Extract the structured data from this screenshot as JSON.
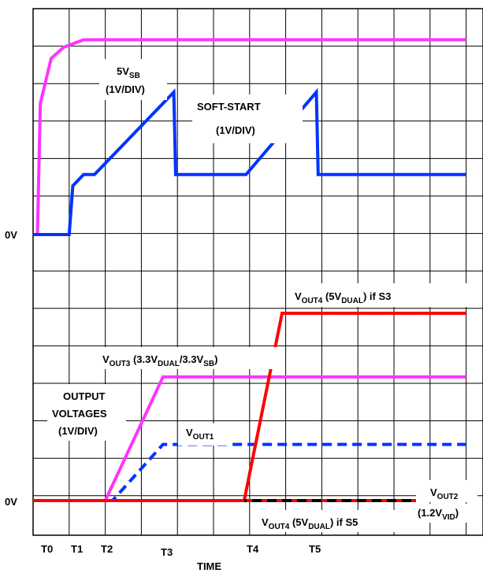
{
  "chart_data": {
    "type": "line",
    "title": "",
    "xlabel": "TIME",
    "ylabel": "",
    "x_ticks": [
      "T0",
      "T1",
      "T2",
      "T3",
      "T4",
      "T5"
    ],
    "y_zero_labels": [
      "0V",
      "0V"
    ],
    "panels": [
      {
        "name": "upper",
        "scale_label": "1V/DIV",
        "grid": true,
        "series": [
          {
            "name": "5VSB",
            "color": "#ff33ff",
            "style": "solid",
            "points": [
              [
                0.0,
                0.0
              ],
              [
                0.12,
                0.0
              ],
              [
                0.2,
                3.5
              ],
              [
                0.5,
                4.7
              ],
              [
                0.85,
                5.0
              ],
              [
                1.4,
                5.2
              ],
              [
                12.0,
                5.2
              ]
            ]
          },
          {
            "name": "SOFT-START",
            "color": "#0033ff",
            "style": "solid",
            "points": [
              [
                0.0,
                0.0
              ],
              [
                1.0,
                0.0
              ],
              [
                1.1,
                1.3
              ],
              [
                1.4,
                1.6
              ],
              [
                1.7,
                1.6
              ],
              [
                3.9,
                3.8
              ],
              [
                3.95,
                1.6
              ],
              [
                5.9,
                1.6
              ],
              [
                7.85,
                3.8
              ],
              [
                7.9,
                1.6
              ],
              [
                12.0,
                1.6
              ]
            ]
          }
        ]
      },
      {
        "name": "lower",
        "scale_label": "1V/DIV",
        "grid": true,
        "series": [
          {
            "name": "VOUT3 (3.3VDUAL/3.3VSB)",
            "color": "#ff33ff",
            "style": "solid",
            "points": [
              [
                0.0,
                0.0
              ],
              [
                2.0,
                0.0
              ],
              [
                3.6,
                3.3
              ],
              [
                12.0,
                3.3
              ]
            ]
          },
          {
            "name": "VOUT1",
            "color": "#0033ff",
            "style": "dashed",
            "points": [
              [
                0.0,
                0.0
              ],
              [
                2.2,
                0.0
              ],
              [
                3.6,
                1.5
              ],
              [
                12.0,
                1.5
              ]
            ]
          },
          {
            "name": "VOUT4 (5VDUAL) if S3",
            "color": "#ff0000",
            "style": "solid",
            "points": [
              [
                0.0,
                0.0
              ],
              [
                5.85,
                0.0
              ],
              [
                6.9,
                5.0
              ],
              [
                12.0,
                5.0
              ]
            ]
          },
          {
            "name": "VOUT4 (5VDUAL) if S5",
            "color": "#ff0000",
            "style": "dashed",
            "points": [
              [
                5.85,
                0.0
              ],
              [
                12.0,
                0.0
              ]
            ]
          },
          {
            "name": "VOUT2 (1.2VVID)",
            "color": "#000000",
            "style": "dashed",
            "points": [
              [
                5.85,
                0.0
              ],
              [
                12.0,
                0.0
              ]
            ]
          }
        ]
      }
    ]
  },
  "labels": {
    "zero_upper": "0V",
    "zero_lower": "0V",
    "x_title": "TIME",
    "t0": "T0",
    "t1": "T1",
    "t2": "T2",
    "t3": "T3",
    "t4": "T4",
    "t5": "T5",
    "sb_main": "5V",
    "sb_sub": "SB",
    "sb_scale": "(1V/DIV)",
    "ss_title": "SOFT-START",
    "ss_scale": "(1V/DIV)",
    "ov_line1": "OUTPUT",
    "ov_line2": "VOLTAGES",
    "ov_line3": "(1V/DIV)",
    "vout1_main": "V",
    "vout1_sub": "OUT1",
    "vout3_v": "V",
    "vout3_sub": "OUT3",
    "vout3_rest1": " (3.3V",
    "vout3_sub2": "DUAL",
    "vout3_rest2": "/3.3V",
    "vout3_sub3": "SB",
    "vout3_rest3": ")",
    "vout4s3_v": "V",
    "vout4s3_sub": "OUT4",
    "vout4s3_rest1": " (5V",
    "vout4s3_sub2": "DUAL",
    "vout4s3_rest2": ") if S3",
    "vout4s5_v": "V",
    "vout4s5_sub": "OUT4",
    "vout4s5_rest1": " (5V",
    "vout4s5_sub2": "DUAL",
    "vout4s5_rest2": ") if S5",
    "vout2_v": "V",
    "vout2_sub": "OUT2",
    "vout2_l2a": "(1.2V",
    "vout2_l2sub": "VID",
    "vout2_l2b": ")"
  }
}
